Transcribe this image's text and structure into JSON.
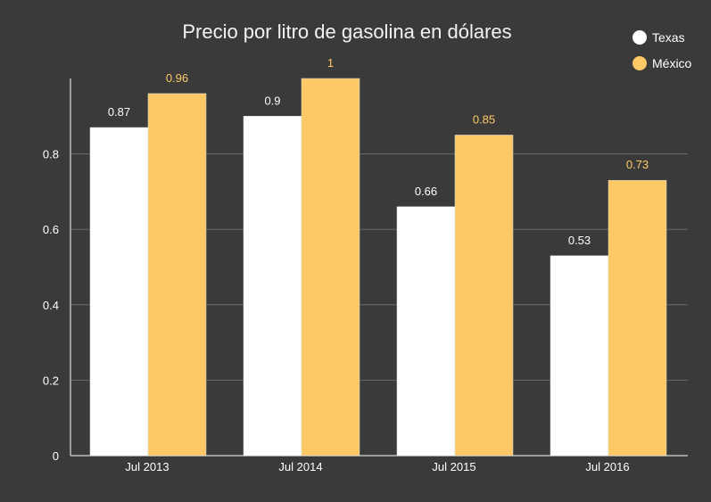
{
  "colors": {
    "background": "#3a3a3a",
    "grid": "#6a6a6a",
    "axis": "#bdbdbd",
    "text": "#ffffff",
    "title": "#f2f2f2",
    "series_texas": "#ffffff",
    "series_mexico": "#fdc967",
    "label_mexico": "#fdc967"
  },
  "chart_data": {
    "type": "bar",
    "title": "Precio por litro de gasolina en dólares",
    "xlabel": "",
    "ylabel": "",
    "categories": [
      "Jul 2013",
      "Jul 2014",
      "Jul 2015",
      "Jul 2016"
    ],
    "series": [
      {
        "name": "Texas",
        "values": [
          0.87,
          0.9,
          0.66,
          0.53
        ]
      },
      {
        "name": "México",
        "values": [
          0.96,
          1,
          0.85,
          0.73
        ]
      }
    ],
    "value_labels": [
      [
        "0.87",
        "0.9",
        "0.66",
        "0.53"
      ],
      [
        "0.96",
        "1",
        "0.85",
        "0.73"
      ]
    ],
    "ylim": [
      0,
      1
    ],
    "yticks": [
      0,
      0.2,
      0.4,
      0.6,
      0.8
    ],
    "ytick_labels": [
      "0",
      "0.2",
      "0.4",
      "0.6",
      "0.8"
    ],
    "grid": true,
    "legend": "top-right"
  }
}
